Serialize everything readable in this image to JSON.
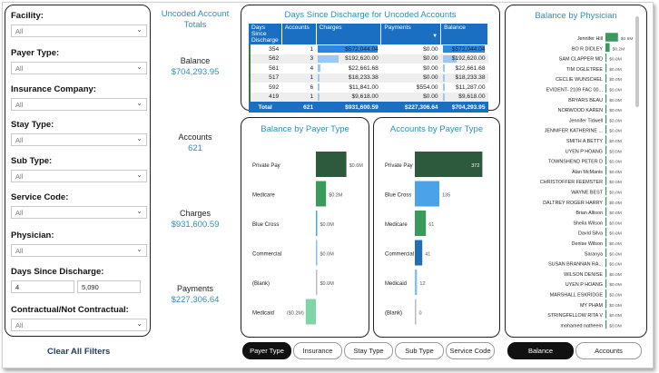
{
  "filters": [
    {
      "label": "Facility:",
      "value": "All"
    },
    {
      "label": "Payer Type:",
      "value": "All"
    },
    {
      "label": "Insurance Company:",
      "value": "All"
    },
    {
      "label": "Stay Type:",
      "value": "All"
    },
    {
      "label": "Sub Type:",
      "value": "All"
    },
    {
      "label": "Service Code:",
      "value": "All"
    },
    {
      "label": "Physician:",
      "value": "All"
    },
    {
      "label": "Days Since Discharge:",
      "min": "4",
      "max": "5,090"
    },
    {
      "label": "Contractual/Not Contractual:",
      "value": "All"
    }
  ],
  "clear_label": "Clear All Filters",
  "totals": {
    "title": "Uncoded Account Totals",
    "balance_label": "Balance",
    "balance": "$704,293.95",
    "accounts_label": "Accounts",
    "accounts": "621",
    "charges_label": "Charges",
    "charges": "$931,600.59",
    "payments_label": "Payments",
    "payments": "$227,306.64"
  },
  "dsd_table": {
    "title": "Days Since Discharge for Uncoded Accounts",
    "headers": [
      "Days Since Discharge",
      "Accounts",
      "Charges",
      "Payments",
      "Balance"
    ],
    "rows": [
      {
        "days": "354",
        "accounts": "1",
        "charges": "$572,044.04",
        "payments": "$0.00",
        "balance": "$572,044.04",
        "charge_frac": 1.0,
        "balance_frac": 1.0
      },
      {
        "days": "562",
        "accounts": "3",
        "charges": "$192,620.00",
        "payments": "$0.00",
        "balance": "$192,620.00",
        "charge_frac": 0.34,
        "balance_frac": 0.34
      },
      {
        "days": "561",
        "accounts": "4",
        "charges": "$22,661.68",
        "payments": "$0.00",
        "balance": "$22,661.68",
        "charge_frac": 0.04,
        "balance_frac": 0.04
      },
      {
        "days": "517",
        "accounts": "1",
        "charges": "$18,233.38",
        "payments": "$0.00",
        "balance": "$18,233.38",
        "charge_frac": 0.03,
        "balance_frac": 0.03
      },
      {
        "days": "592",
        "accounts": "6",
        "charges": "$11,841.00",
        "payments": "$554.00",
        "balance": "$11,287.00",
        "charge_frac": 0.02,
        "balance_frac": 0.02
      },
      {
        "days": "419",
        "accounts": "1",
        "charges": "$9,618.00",
        "payments": "$0.00",
        "balance": "$9,618.00",
        "charge_frac": 0.017,
        "balance_frac": 0.017
      }
    ],
    "total": {
      "label": "Total",
      "accounts": "621",
      "charges": "$931,600.59",
      "payments": "$227,306.64",
      "balance": "$704,293.95"
    }
  },
  "chart_data": [
    {
      "type": "bar",
      "title": "Balance by Payer Type",
      "categories": [
        "Private Pay",
        "Medicare",
        "Blue Cross",
        "Commercial",
        "(Blank)",
        "Medicaid"
      ],
      "values": [
        0.6,
        0.2,
        0.0,
        0.0,
        0.0,
        -0.2
      ],
      "data_labels": [
        "$0.6M",
        "$0.2M",
        "$0.0M",
        "$0.0M",
        "$0.0M",
        "($0.2M)"
      ],
      "colors": [
        "#2d5a3d",
        "#3a9a5c",
        "#4aa3e8",
        "#7fc0ec",
        "#bbbbbb",
        "#7fd4a8"
      ]
    },
    {
      "type": "bar",
      "title": "Accounts by Payer Type",
      "categories": [
        "Private Pay",
        "Blue Cross",
        "Medicare",
        "Commercial",
        "Medicaid",
        "(Blank)"
      ],
      "values": [
        372,
        135,
        61,
        41,
        12,
        0
      ],
      "data_labels": [
        "372",
        "135",
        "61",
        "41",
        "12",
        "0"
      ],
      "colors": [
        "#2d5a3d",
        "#4aa3e8",
        "#3a9a5c",
        "#1f6fb5",
        "#7fc0ec",
        "#bbbbbb"
      ]
    },
    {
      "type": "bar",
      "title": "Balance by Physician",
      "categories": [
        "Jennifer Hill",
        "BO R DIDLEY",
        "SAM CLAPPER MD",
        "TIM OGLETREE",
        "CECLIE WUNSCHEL",
        "EVIDENT- 2109 FAC 00...",
        "BRYARS BEAU",
        "NORWOOD KAREN",
        "Jennifer Tidwell",
        "JENNIFER KATHERINE ...",
        "SMITH A BETTY",
        "UYEN P HOANG",
        "TOWNSHEND PETER D",
        "Alan McManis",
        "CHRISTOFFER FEEMSTER",
        "WAYNE BEST",
        "DALTREY ROGER HARRY",
        "Brian Allison",
        "Sheila Wilson",
        "David Silva",
        "Denise Wilson",
        "Saranya",
        "SUSAN BRANNAN RA...",
        "WILSON DENISE",
        "UYEN P HOANG",
        "MARSHALL ESKRIDGE",
        "MY PHAM",
        "STRINGFELLOW RITA V",
        "mohamed natheem"
      ],
      "values": [
        0.6,
        0.2,
        0,
        0,
        0,
        0,
        0,
        0,
        0,
        0,
        0,
        0,
        0,
        0,
        0,
        0,
        0,
        0,
        0,
        0,
        0,
        0,
        0,
        0,
        0,
        0,
        0,
        0,
        0
      ],
      "data_labels": [
        "$0.6M",
        "$0.2M",
        "$0.0M",
        "$0.0M",
        "$0.0M",
        "$0.0M",
        "$0.0M",
        "$0.0M",
        "$0.0M",
        "$0.0M",
        "$0.0M",
        "$0.0M",
        "$0.0M",
        "$0.0M",
        "$0.0M",
        "$0.0M",
        "$0.0M",
        "$0.0M",
        "$0.0M",
        "$0.0M",
        "$0.0M",
        "$0.0M",
        "$0.0M",
        "$0.0M",
        "$0.0M",
        "$0.0M",
        "$0.0M",
        "$0.0M",
        "$0.0M"
      ],
      "colors": [
        "#3a9a5c"
      ]
    }
  ],
  "tabs": [
    "Payer Type",
    "Insurance",
    "Stay Type",
    "Sub Type",
    "Service Code"
  ],
  "active_tab": 0,
  "metric_tabs": [
    "Balance",
    "Accounts"
  ],
  "active_metric": 0
}
